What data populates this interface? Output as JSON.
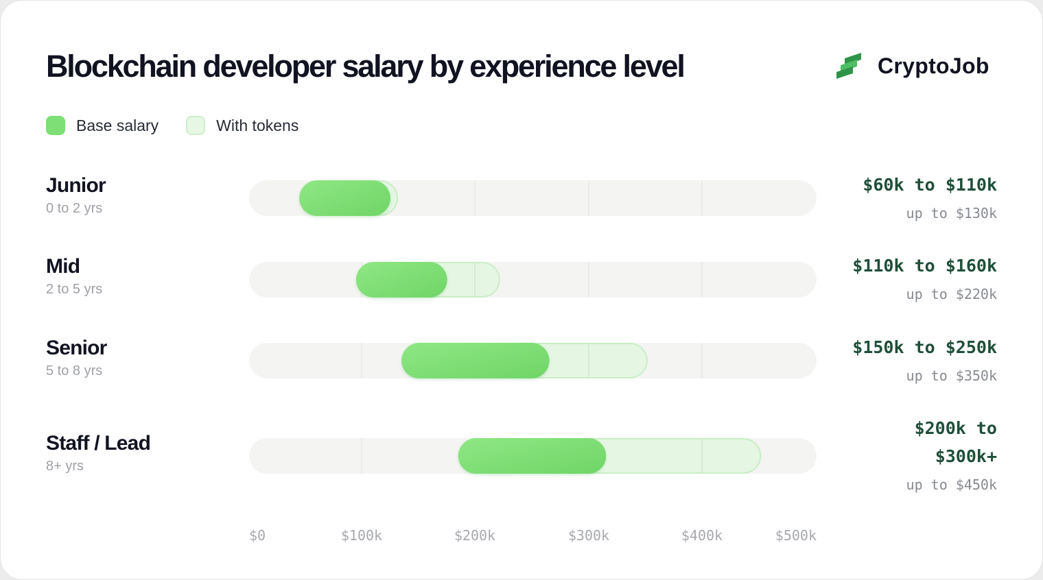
{
  "title": "Blockchain developer salary by experience level",
  "brand": {
    "name": "CryptoJob",
    "icon": "stacked-chevrons-logo"
  },
  "legend": [
    {
      "label": "Base salary",
      "color": "#7ddf75"
    },
    {
      "label": "With tokens",
      "color": "#e6f7e4"
    }
  ],
  "colors": {
    "base": "#7ddf75",
    "base_light": "#8fe784",
    "tokens_fill": "#e3f6e1",
    "tokens_stroke": "#c8eec4",
    "track": "#f4f4f2",
    "range_text": "#1f4f39",
    "title": "#111322"
  },
  "chart_data": {
    "type": "range_bar",
    "title": "Blockchain developer salary by experience level",
    "xlabel": "",
    "ylabel": "",
    "xlim": [
      0,
      500
    ],
    "x_unit": "thousand USD",
    "ticks": [
      0,
      100,
      200,
      300,
      400,
      500
    ],
    "tick_labels": [
      "$0",
      "$100k",
      "$200k",
      "$300k",
      "$400k",
      "$500k"
    ],
    "grid": true,
    "legend_position": "top-left",
    "series": [
      {
        "name": "Base salary"
      },
      {
        "name": "With tokens"
      }
    ],
    "rows": [
      {
        "level": "Junior",
        "years": "0 to 2 yrs",
        "base_min": 60,
        "base_max": 110,
        "tokens_max": 130,
        "range_label": "$60k to $110k",
        "tokens_label": "up to $130k"
      },
      {
        "level": "Mid",
        "years": "2 to 5 yrs",
        "base_min": 110,
        "base_max": 160,
        "tokens_max": 220,
        "range_label": "$110k to $160k",
        "tokens_label": "up to $220k"
      },
      {
        "level": "Senior",
        "years": "5 to 8 yrs",
        "base_min": 150,
        "base_max": 250,
        "tokens_max": 350,
        "range_label": "$150k to $250k",
        "tokens_label": "up to $350k"
      },
      {
        "level": "Staff / Lead",
        "years": "8+ yrs",
        "base_min": 200,
        "base_max": 300,
        "tokens_max": 450,
        "range_label": "$200k to $300k+",
        "tokens_label": "up to $450k"
      }
    ]
  }
}
